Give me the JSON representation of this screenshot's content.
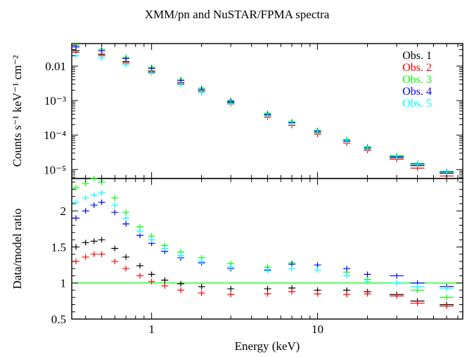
{
  "chart_data": [
    {
      "type": "scatter",
      "panel": "spectra",
      "title": "XMM/pn and NuSTAR/FPMA spectra",
      "ylabel": "Counts s⁻¹ keV⁻¹ cm⁻²",
      "xlabel": "",
      "xscale": "log",
      "yscale": "log",
      "xlim": [
        0.33,
        75
      ],
      "ylim": [
        5.5e-06,
        0.045
      ],
      "grid": false,
      "legend_position": "top-right",
      "yticks": [
        {
          "value": 0.01,
          "label": "0.01"
        },
        {
          "value": 0.001,
          "label": "10⁻³"
        },
        {
          "value": 0.0001,
          "label": "10⁻⁴"
        },
        {
          "value": 1e-05,
          "label": "10⁻⁵"
        }
      ],
      "series": [
        {
          "name": "Obs. 1",
          "color": "#000000",
          "x": [
            0.35,
            0.5,
            0.7,
            1,
            1.5,
            2,
            3,
            5,
            7,
            10,
            15,
            20,
            30,
            40,
            60
          ],
          "y": [
            0.028,
            0.022,
            0.0135,
            0.0072,
            0.0033,
            0.0019,
            0.00088,
            0.00037,
            0.00021,
            0.000118,
            6.5e-05,
            4e-05,
            2.2e-05,
            1.3e-05,
            7.8e-06
          ]
        },
        {
          "name": "Obs. 2",
          "color": "#ff0000",
          "x": [
            0.35,
            0.5,
            0.7,
            1,
            1.5,
            2,
            3,
            5,
            7,
            10,
            15,
            20,
            30,
            40,
            60
          ],
          "y": [
            0.025,
            0.02,
            0.0123,
            0.0066,
            0.003,
            0.0017,
            0.0008,
            0.00033,
            0.00019,
            0.000105,
            5.8e-05,
            3.6e-05,
            2e-05,
            1.1e-05,
            6.5e-06
          ]
        },
        {
          "name": "Obs. 3",
          "color": "#00ff00",
          "x": [
            0.35,
            0.5,
            0.7,
            1,
            1.5,
            2,
            3,
            5,
            7,
            10,
            15,
            20,
            30,
            40,
            60
          ],
          "y": [
            0.04,
            0.031,
            0.018,
            0.0093,
            0.0041,
            0.0023,
            0.00102,
            0.00043,
            0.000245,
            0.000138,
            7.5e-05,
            4.6e-05,
            2.5e-05,
            1.5e-05,
            8.8e-06
          ]
        },
        {
          "name": "Obs. 4",
          "color": "#0000ff",
          "x": [
            0.35,
            0.5,
            0.7,
            1,
            1.5,
            2,
            3,
            5,
            7,
            10,
            15,
            20,
            30,
            40,
            60
          ],
          "y": [
            0.036,
            0.028,
            0.0165,
            0.0086,
            0.0038,
            0.0021,
            0.00095,
            0.0004,
            0.00023,
            0.00013,
            7e-05,
            4.3e-05,
            2.4e-05,
            1.45e-05,
            8.5e-06
          ]
        },
        {
          "name": "Obs. 5",
          "color": "#00ffff",
          "x": [
            0.35,
            0.5,
            0.7,
            1,
            1.5,
            2,
            3,
            5,
            7,
            10,
            15,
            20,
            30,
            40,
            60
          ],
          "y": [
            0.02,
            0.017,
            0.011,
            0.0062,
            0.0029,
            0.0017,
            0.00082,
            0.00036,
            0.00021,
            0.000122,
            6.7e-05,
            4.1e-05,
            2.3e-05,
            1.4e-05,
            8.2e-06
          ]
        }
      ]
    },
    {
      "type": "scatter",
      "panel": "ratio",
      "title": "",
      "xlabel": "Energy (keV)",
      "ylabel": "Data/model ratio",
      "xscale": "log",
      "yscale": "linear",
      "xlim": [
        0.33,
        75
      ],
      "ylim": [
        0.5,
        2.45
      ],
      "grid": false,
      "reference_line": {
        "y": 1,
        "color": "#00ff00"
      },
      "xticks": [
        {
          "value": 1,
          "label": "1"
        },
        {
          "value": 10,
          "label": "10"
        }
      ],
      "yticks": [
        {
          "value": 0.5,
          "label": "0.5"
        },
        {
          "value": 1,
          "label": "1"
        },
        {
          "value": 1.5,
          "label": "1.5"
        },
        {
          "value": 2,
          "label": "2"
        }
      ],
      "series": [
        {
          "name": "Obs. 1",
          "color": "#000000",
          "x": [
            0.35,
            0.4,
            0.45,
            0.5,
            0.6,
            0.7,
            0.85,
            1,
            1.2,
            1.5,
            2,
            3,
            5,
            7,
            10,
            15,
            20,
            30,
            40,
            60
          ],
          "y": [
            1.5,
            1.56,
            1.58,
            1.6,
            1.48,
            1.36,
            1.24,
            1.12,
            1.04,
            0.99,
            0.95,
            0.92,
            0.92,
            0.93,
            0.9,
            0.9,
            0.88,
            0.84,
            0.75,
            0.7
          ]
        },
        {
          "name": "Obs. 2",
          "color": "#ff0000",
          "x": [
            0.35,
            0.4,
            0.45,
            0.5,
            0.6,
            0.7,
            0.85,
            1,
            1.2,
            1.5,
            2,
            3,
            5,
            7,
            10,
            15,
            20,
            30,
            40,
            60
          ],
          "y": [
            1.3,
            1.36,
            1.4,
            1.4,
            1.3,
            1.2,
            1.1,
            1.02,
            0.96,
            0.9,
            0.86,
            0.84,
            0.85,
            0.88,
            0.85,
            0.84,
            0.85,
            0.82,
            0.72,
            0.68
          ]
        },
        {
          "name": "Obs. 3",
          "color": "#00ff00",
          "x": [
            0.35,
            0.4,
            0.45,
            0.5,
            0.6,
            0.7,
            0.85,
            1,
            1.2,
            1.5,
            2,
            3,
            5,
            7,
            10,
            15,
            20,
            30,
            40,
            60
          ],
          "y": [
            2.32,
            2.38,
            2.45,
            2.4,
            2.18,
            1.98,
            1.78,
            1.65,
            1.52,
            1.43,
            1.35,
            1.27,
            1.22,
            1.28,
            1.25,
            1.15,
            1.05,
            1.0,
            0.9,
            0.8
          ]
        },
        {
          "name": "Obs. 4",
          "color": "#0000ff",
          "x": [
            0.35,
            0.4,
            0.45,
            0.5,
            0.6,
            0.7,
            0.85,
            1,
            1.2,
            1.5,
            2,
            3,
            5,
            7,
            10,
            15,
            20,
            30,
            40,
            60
          ],
          "y": [
            1.9,
            2.0,
            2.08,
            2.12,
            1.98,
            1.82,
            1.66,
            1.55,
            1.44,
            1.35,
            1.28,
            1.2,
            1.18,
            1.26,
            1.25,
            1.2,
            1.12,
            1.1,
            1.0,
            0.95
          ]
        },
        {
          "name": "Obs. 5",
          "color": "#00ffff",
          "x": [
            0.35,
            0.4,
            0.45,
            0.5,
            0.6,
            0.7,
            0.85,
            1,
            1.2,
            1.5,
            2,
            3,
            5,
            7,
            10,
            15,
            20,
            30,
            40,
            60
          ],
          "y": [
            2.12,
            2.18,
            2.22,
            2.25,
            2.08,
            1.9,
            1.72,
            1.6,
            1.48,
            1.38,
            1.3,
            1.22,
            1.17,
            1.2,
            1.18,
            1.1,
            1.02,
            1.0,
            0.95,
            0.92
          ]
        }
      ]
    }
  ]
}
